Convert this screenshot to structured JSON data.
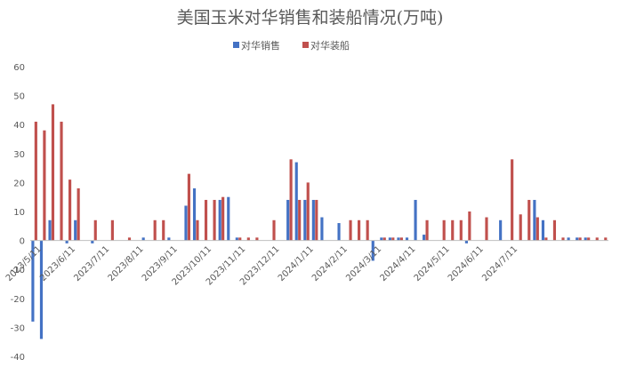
{
  "chart_data": {
    "type": "bar",
    "title": "美国玉米对华销售和装船情况(万吨)",
    "xlabel": "",
    "ylabel": "",
    "ylim": [
      -40,
      60
    ],
    "yticks": [
      "-40",
      "-30",
      "-20",
      "-10",
      "0",
      "10",
      "20",
      "30",
      "40",
      "50",
      "60"
    ],
    "grid": false,
    "legend_position": "top",
    "colors": {
      "sales": "#4472c4",
      "shipment": "#c0504d"
    },
    "x_tick_labels": [
      "2023/5/11",
      "2023/6/11",
      "2023/7/11",
      "2023/8/11",
      "2023/9/11",
      "2023/10/11",
      "2023/11/11",
      "2023/12/11",
      "2024/1/11",
      "2024/2/11",
      "2024/3/11",
      "2024/4/11",
      "2024/5/11",
      "2024/6/11",
      "2024/7/11"
    ],
    "tick_every": 4,
    "series": [
      {
        "name": "对华销售",
        "key": "sales",
        "values": [
          -28,
          -34,
          7,
          0,
          -1,
          7,
          0,
          -1,
          0,
          0,
          0,
          0,
          0,
          1,
          0,
          0,
          1,
          0,
          12,
          18,
          0,
          0,
          14,
          15,
          1,
          0,
          0,
          0,
          0,
          0,
          14,
          27,
          14,
          14,
          8,
          0,
          6,
          0,
          0,
          0,
          -7,
          1,
          1,
          1,
          1,
          14,
          2,
          0,
          0,
          0,
          0,
          -1,
          0,
          0,
          0,
          7,
          0,
          0,
          0,
          14,
          7,
          0,
          0,
          1,
          1,
          1,
          0,
          0
        ]
      },
      {
        "name": "对华装船",
        "key": "shipment",
        "values": [
          41,
          38,
          47,
          41,
          21,
          18,
          0,
          7,
          0,
          7,
          0,
          1,
          0,
          0,
          7,
          7,
          0,
          0,
          23,
          7,
          14,
          14,
          15,
          0,
          1,
          1,
          1,
          0,
          7,
          0,
          28,
          14,
          20,
          14,
          0,
          0,
          0,
          7,
          7,
          7,
          0,
          1,
          1,
          1,
          0,
          0,
          7,
          0,
          7,
          7,
          7,
          10,
          0,
          8,
          0,
          0,
          28,
          9,
          14,
          8,
          1,
          7,
          1,
          0,
          1,
          1,
          1,
          1
        ]
      }
    ]
  }
}
